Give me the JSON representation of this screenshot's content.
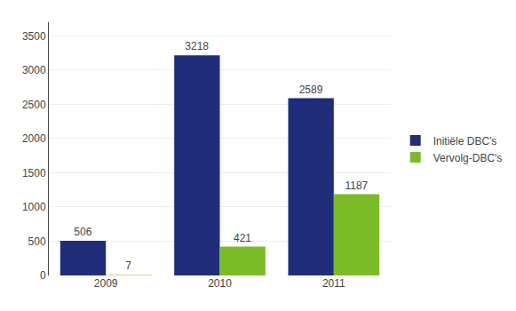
{
  "chart_data": {
    "type": "bar",
    "categories": [
      "2009",
      "2010",
      "2011"
    ],
    "series": [
      {
        "name": "Initiële DBC's",
        "color": "#1F2D7B",
        "values": [
          506,
          3218,
          2589
        ]
      },
      {
        "name": "Vervolg-DBC's",
        "color": "#7CBB28",
        "values": [
          7,
          421,
          1187
        ]
      }
    ],
    "ylim": [
      0,
      3700
    ],
    "yticks": [
      0,
      500,
      1000,
      1500,
      2000,
      2500,
      3000,
      3500
    ],
    "grid": true,
    "legend": "right",
    "data_labels": true
  }
}
